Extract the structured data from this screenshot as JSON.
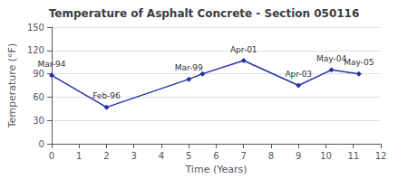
{
  "chart_data": {
    "type": "line",
    "title": "Temperature of Asphalt Concrete - Section 050116",
    "xlabel": "Time (Years)",
    "ylabel": "Temperature (°F)",
    "x": [
      0,
      2,
      5,
      5.5,
      7,
      9,
      10.2,
      11.2
    ],
    "values": [
      88,
      47,
      83,
      90,
      107,
      75,
      95,
      90
    ],
    "annotations": [
      "Mar-94",
      "Feb-96",
      "Mar-99",
      null,
      "Apr-01",
      "Apr-03",
      "May-04",
      "May-05"
    ],
    "xlim": [
      0,
      12
    ],
    "xticks": [
      0,
      1,
      2,
      3,
      4,
      5,
      6,
      7,
      8,
      9,
      10,
      11,
      12
    ],
    "ylim": [
      0,
      150
    ],
    "yticks": [
      0,
      30,
      60,
      90,
      120,
      150
    ],
    "grid": true,
    "color": "#2233aa",
    "marker": "diamond"
  }
}
